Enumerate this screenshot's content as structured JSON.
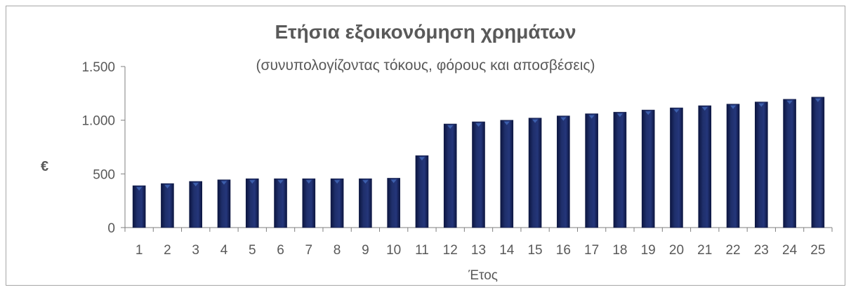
{
  "chart_data": {
    "type": "bar",
    "title": "Ετήσια εξοικονόμηση χρημάτων",
    "subtitle": "(συνυπολογίζοντας τόκους, φόρους και αποσβέσεις)",
    "xlabel": "Έτος",
    "ylabel": "€",
    "ylim": [
      0,
      1500
    ],
    "yticks": [
      0,
      500,
      1000,
      1500
    ],
    "ytick_labels": [
      "0",
      "500",
      "1.000",
      "1.500"
    ],
    "categories": [
      "1",
      "2",
      "3",
      "4",
      "5",
      "6",
      "7",
      "8",
      "9",
      "10",
      "11",
      "12",
      "13",
      "14",
      "15",
      "16",
      "17",
      "18",
      "19",
      "20",
      "21",
      "22",
      "23",
      "24",
      "25"
    ],
    "values": [
      390,
      410,
      430,
      445,
      455,
      455,
      455,
      455,
      455,
      460,
      670,
      965,
      985,
      1000,
      1020,
      1040,
      1060,
      1075,
      1095,
      1115,
      1135,
      1150,
      1170,
      1195,
      1215
    ],
    "grid": false,
    "legend": "none",
    "colors": {
      "bar": "#1f2f6b",
      "bar_dark": "#0f1a45",
      "bar_marker": "#3f64b3",
      "axis": "#7f7f7f",
      "text": "#595959"
    }
  }
}
